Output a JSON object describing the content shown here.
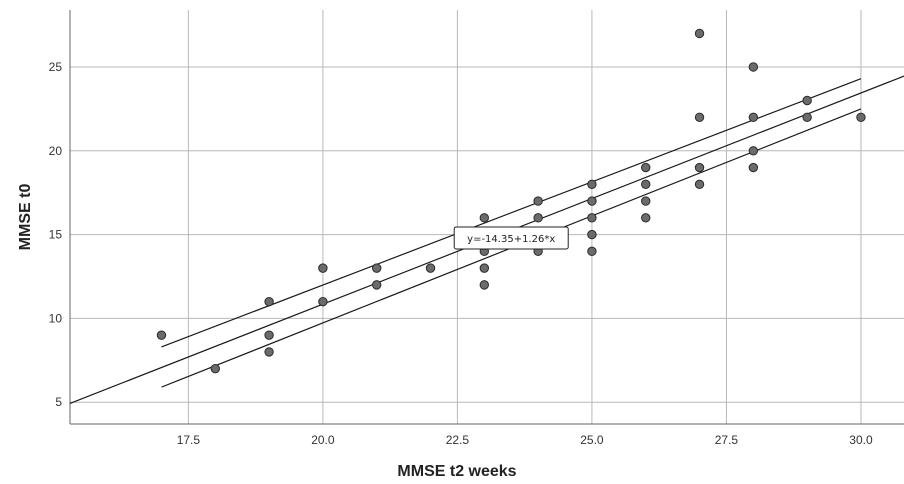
{
  "chart_data": {
    "type": "scatter",
    "title": "",
    "xlabel": "MMSE t2 weeks",
    "ylabel": "MMSE t0",
    "xlim": [
      15.3,
      30.8
    ],
    "ylim": [
      3.7,
      28.4
    ],
    "x_ticks": [
      17.5,
      20.0,
      22.5,
      25.0,
      27.5,
      30.0
    ],
    "x_tick_labels": [
      "17.5",
      "20.0",
      "22.5",
      "25.0",
      "27.5",
      "30.0"
    ],
    "y_ticks": [
      5,
      10,
      15,
      20,
      25
    ],
    "y_tick_labels": [
      "5",
      "10",
      "15",
      "20",
      "25"
    ],
    "grid": true,
    "points": {
      "x": [
        17,
        18,
        19,
        19,
        19,
        20,
        20,
        21,
        21,
        22,
        23,
        23,
        23,
        23,
        24,
        24,
        24,
        25,
        25,
        25,
        25,
        25,
        26,
        26,
        26,
        26,
        27,
        27,
        27,
        27,
        28,
        28,
        28,
        28,
        29,
        29,
        30
      ],
      "y": [
        9,
        7,
        11,
        9,
        8,
        13,
        11,
        13,
        12,
        13,
        16,
        13,
        12,
        14,
        17,
        16,
        14,
        18,
        17,
        16,
        15,
        14,
        19,
        18,
        17,
        16,
        27,
        22,
        19,
        18,
        25,
        22,
        20,
        19,
        23,
        22,
        22
      ]
    },
    "fit_line": {
      "intercept": -14.35,
      "slope": 1.26,
      "x_range": [
        15.3,
        30.8
      ]
    },
    "ci_upper": {
      "x": [
        17,
        30
      ],
      "y": [
        8.3,
        24.3
      ]
    },
    "ci_lower": {
      "x": [
        17,
        30
      ],
      "y": [
        5.9,
        22.5
      ]
    },
    "annotation": {
      "text": "y=-14.35+1.26*x",
      "x": 23.5,
      "y": 14.8
    }
  }
}
